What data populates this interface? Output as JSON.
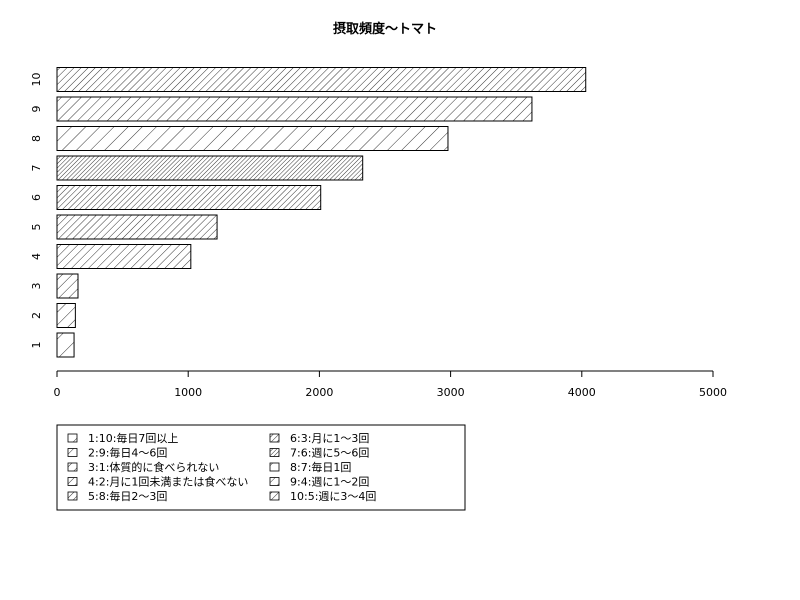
{
  "chart_data": {
    "type": "bar",
    "orientation": "horizontal",
    "title": "摂取頻度〜トマト",
    "xlabel": "",
    "ylabel": "",
    "categories": [
      "1",
      "2",
      "3",
      "4",
      "5",
      "6",
      "7",
      "8",
      "9",
      "10"
    ],
    "values": [
      130,
      140,
      160,
      1020,
      1220,
      2010,
      2330,
      2980,
      3620,
      4030
    ],
    "xlim": [
      0,
      5000
    ],
    "xticks": [
      0,
      1000,
      2000,
      3000,
      4000,
      5000
    ],
    "grid": false,
    "legend_position": "bottom-left",
    "legend": [
      "1:10:毎日7回以上",
      "2:9:毎日4〜6回",
      "3:1:体質的に食べられない",
      "4:2:月に1回未満または食べない",
      "5:8:毎日2〜3回",
      "6:3:月に1〜3回",
      "7:6:週に5〜6回",
      "8:7:毎日1回",
      "9:4:週に1〜2回",
      "10:5:週に3〜4回"
    ],
    "colors": {
      "fill": "#ffffff",
      "stroke": "#000000",
      "hatch": "#000000"
    }
  }
}
